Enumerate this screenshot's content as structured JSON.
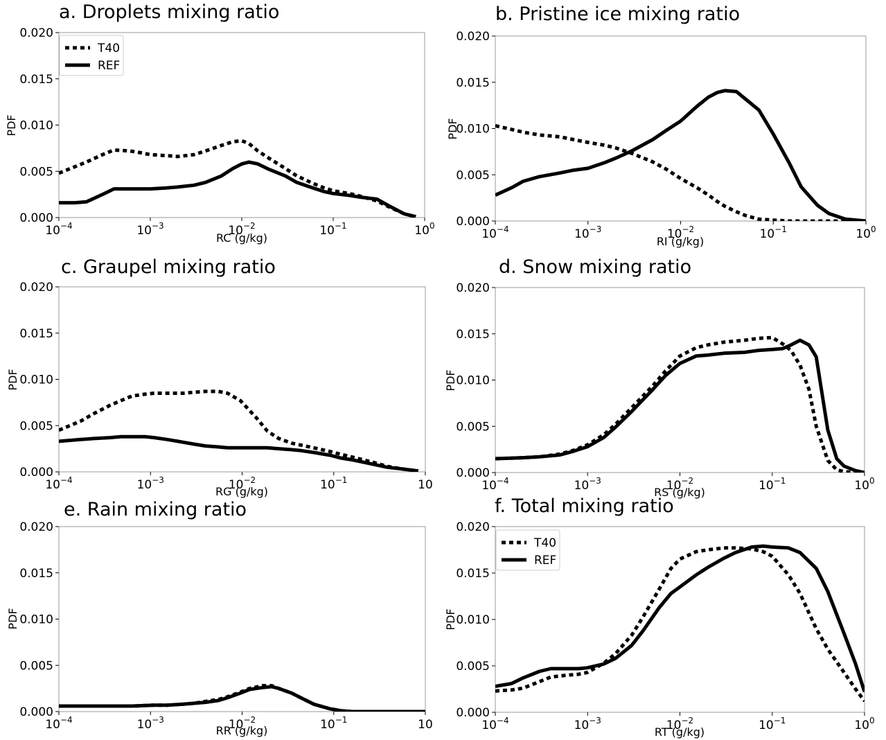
{
  "chart_data": [
    {
      "type": "line",
      "title": "a. Droplets mixing ratio",
      "xlabel": "RC (g/kg)",
      "ylabel": "PDF",
      "x_scale": "log",
      "xlim": [
        0.0001,
        1
      ],
      "ylim": [
        0,
        0.02
      ],
      "xticks": [
        "10^-4",
        "10^-3",
        "10^-2",
        "10^-1",
        "10^0"
      ],
      "yticks": [
        "0.000",
        "0.005",
        "0.010",
        "0.015",
        "0.020"
      ],
      "legend": {
        "placement": "top-left",
        "entries": [
          "T40",
          "REF"
        ]
      },
      "x": [
        0.0001,
        0.00015,
        0.0002,
        0.0003,
        0.0004,
        0.0006,
        0.0008,
        0.001,
        0.0015,
        0.002,
        0.003,
        0.004,
        0.006,
        0.008,
        0.01,
        0.012,
        0.015,
        0.02,
        0.03,
        0.04,
        0.06,
        0.08,
        0.1,
        0.15,
        0.2,
        0.3,
        0.4,
        0.6,
        0.8
      ],
      "series": [
        {
          "name": "T40",
          "style": "dotted",
          "values": [
            0.0048,
            0.0055,
            0.006,
            0.0068,
            0.0073,
            0.0072,
            0.007,
            0.0068,
            0.0067,
            0.0066,
            0.0068,
            0.0072,
            0.0078,
            0.0082,
            0.0083,
            0.008,
            0.0072,
            0.0064,
            0.0053,
            0.0045,
            0.0037,
            0.0032,
            0.0029,
            0.0026,
            0.0023,
            0.0018,
            0.0012,
            0.0004,
            0.0001
          ]
        },
        {
          "name": "REF",
          "style": "solid",
          "values": [
            0.0016,
            0.0016,
            0.0017,
            0.0025,
            0.0031,
            0.0031,
            0.0031,
            0.0031,
            0.0032,
            0.0033,
            0.0035,
            0.0038,
            0.0045,
            0.0053,
            0.0058,
            0.006,
            0.0058,
            0.0052,
            0.0045,
            0.0038,
            0.0032,
            0.0028,
            0.0026,
            0.0024,
            0.0022,
            0.002,
            0.0013,
            0.0004,
            0.0001
          ]
        }
      ]
    },
    {
      "type": "line",
      "title": "b. Pristine ice mixing ratio",
      "xlabel": "RI (g/kg)",
      "ylabel": "PDF",
      "x_scale": "log",
      "xlim": [
        0.0001,
        1
      ],
      "ylim": [
        0,
        0.02
      ],
      "xticks": [
        "10^-4",
        "10^-3",
        "10^-2",
        "10^-1",
        "10^0"
      ],
      "yticks": [
        "0.000",
        "0.005",
        "0.010",
        "0.015",
        "0.020"
      ],
      "x": [
        0.0001,
        0.00015,
        0.0002,
        0.0003,
        0.0005,
        0.0007,
        0.001,
        0.0015,
        0.002,
        0.003,
        0.005,
        0.007,
        0.01,
        0.015,
        0.02,
        0.025,
        0.03,
        0.04,
        0.05,
        0.07,
        0.1,
        0.15,
        0.2,
        0.3,
        0.4,
        0.6,
        0.8,
        1.0
      ],
      "series": [
        {
          "name": "T40",
          "style": "dotted",
          "values": [
            0.0103,
            0.0099,
            0.0096,
            0.0093,
            0.0091,
            0.0088,
            0.0085,
            0.0082,
            0.0079,
            0.0073,
            0.0064,
            0.0056,
            0.0046,
            0.0036,
            0.0028,
            0.0021,
            0.0016,
            0.001,
            0.0006,
            0.0002,
            0.0001,
            0.0,
            0.0,
            0.0,
            0.0,
            0.0,
            0.0,
            0.0
          ]
        },
        {
          "name": "REF",
          "style": "solid",
          "values": [
            0.0028,
            0.0036,
            0.0043,
            0.0048,
            0.0052,
            0.0055,
            0.0057,
            0.0063,
            0.0068,
            0.0076,
            0.0088,
            0.0098,
            0.0108,
            0.0124,
            0.0134,
            0.0139,
            0.0141,
            0.014,
            0.0132,
            0.012,
            0.0094,
            0.0062,
            0.0037,
            0.0017,
            0.0008,
            0.0002,
            0.0001,
            0.0
          ]
        }
      ]
    },
    {
      "type": "line",
      "title": "c. Graupel mixing ratio",
      "xlabel": "RG (g/kg)",
      "ylabel": "PDF",
      "x_scale": "log",
      "xlim": [
        0.0001,
        10
      ],
      "ylim": [
        0,
        0.02
      ],
      "xticks": [
        "10^-4",
        "10^-3",
        "10^-2",
        "10^-1",
        "10"
      ],
      "yticks": [
        "0.000",
        "0.005",
        "0.010",
        "0.015",
        "0.020"
      ],
      "x": [
        0.0001,
        0.0002,
        0.0003,
        0.0005,
        0.0007,
        0.001,
        0.0015,
        0.002,
        0.003,
        0.005,
        0.007,
        0.01,
        0.015,
        0.02,
        0.03,
        0.05,
        0.07,
        0.1,
        0.15,
        0.2,
        0.3,
        0.5,
        0.7,
        1.0,
        2.0,
        3.0,
        5.0,
        8.0
      ],
      "series": [
        {
          "name": "T40",
          "style": "dotted",
          "values": [
            0.0045,
            0.0055,
            0.0063,
            0.0072,
            0.0077,
            0.0082,
            0.0084,
            0.0085,
            0.0085,
            0.0085,
            0.0086,
            0.0087,
            0.0087,
            0.0085,
            0.0077,
            0.0058,
            0.0044,
            0.0036,
            0.0031,
            0.0029,
            0.0026,
            0.0022,
            0.0019,
            0.0016,
            0.001,
            0.0006,
            0.0003,
            0.0001
          ]
        },
        {
          "name": "REF",
          "style": "solid",
          "values": [
            0.0033,
            0.0035,
            0.0036,
            0.0037,
            0.0038,
            0.0038,
            0.0038,
            0.0037,
            0.0035,
            0.0032,
            0.003,
            0.0028,
            0.0027,
            0.0026,
            0.0026,
            0.0026,
            0.0026,
            0.0025,
            0.0024,
            0.0023,
            0.0021,
            0.0018,
            0.0015,
            0.0013,
            0.0008,
            0.0005,
            0.0003,
            0.0001
          ]
        }
      ]
    },
    {
      "type": "line",
      "title": "d. Snow mixing ratio",
      "xlabel": "RS (g/kg)",
      "ylabel": "PDF",
      "x_scale": "log",
      "xlim": [
        0.0001,
        1
      ],
      "ylim": [
        0,
        0.02
      ],
      "xticks": [
        "10^-4",
        "10^-3",
        "10^-2",
        "10^-1",
        "10^0"
      ],
      "yticks": [
        "0.000",
        "0.005",
        "0.010",
        "0.015",
        "0.020"
      ],
      "x": [
        0.0001,
        0.0002,
        0.0003,
        0.0005,
        0.0007,
        0.001,
        0.0015,
        0.002,
        0.003,
        0.005,
        0.007,
        0.01,
        0.015,
        0.02,
        0.03,
        0.05,
        0.07,
        0.1,
        0.13,
        0.16,
        0.2,
        0.25,
        0.3,
        0.4,
        0.5,
        0.6,
        0.8,
        1.0
      ],
      "series": [
        {
          "name": "T40",
          "style": "dotted",
          "values": [
            0.0015,
            0.0016,
            0.0017,
            0.002,
            0.0024,
            0.003,
            0.0041,
            0.0052,
            0.007,
            0.0093,
            0.011,
            0.0126,
            0.0135,
            0.0138,
            0.0141,
            0.0143,
            0.0145,
            0.0146,
            0.0139,
            0.0132,
            0.0116,
            0.009,
            0.005,
            0.0013,
            0.0003,
            0.0001,
            0.0,
            0.0
          ]
        },
        {
          "name": "REF",
          "style": "solid",
          "values": [
            0.0015,
            0.0016,
            0.0017,
            0.0019,
            0.0023,
            0.0028,
            0.0038,
            0.0049,
            0.0066,
            0.0089,
            0.0105,
            0.0118,
            0.0126,
            0.0127,
            0.0129,
            0.013,
            0.0132,
            0.0133,
            0.0134,
            0.0138,
            0.0143,
            0.0138,
            0.0125,
            0.0046,
            0.0015,
            0.0007,
            0.0002,
            0.0
          ]
        }
      ]
    },
    {
      "type": "line",
      "title": "e. Rain mixing ratio",
      "xlabel": "RR (g/kg)",
      "ylabel": "PDF",
      "x_scale": "log",
      "xlim": [
        0.0001,
        10
      ],
      "ylim": [
        0,
        0.02
      ],
      "xticks": [
        "10^-4",
        "10^-3",
        "10^-2",
        "10^-1",
        "10"
      ],
      "yticks": [
        "0.000",
        "0.005",
        "0.010",
        "0.015",
        "0.020"
      ],
      "x": [
        0.0001,
        0.0002,
        0.0005,
        0.001,
        0.002,
        0.003,
        0.005,
        0.007,
        0.01,
        0.015,
        0.02,
        0.03,
        0.04,
        0.06,
        0.08,
        0.1,
        0.15,
        0.2,
        0.3,
        0.5,
        0.7,
        1.0,
        2.0,
        5.0,
        10.0
      ],
      "series": [
        {
          "name": "T40",
          "style": "dotted",
          "values": [
            0.0006,
            0.0006,
            0.0006,
            0.0006,
            0.0007,
            0.0007,
            0.0008,
            0.0009,
            0.0011,
            0.0013,
            0.0016,
            0.0021,
            0.0025,
            0.0028,
            0.0028,
            0.0025,
            0.002,
            0.0015,
            0.0008,
            0.0003,
            0.0001,
            0.0,
            0.0,
            0.0,
            0.0
          ]
        },
        {
          "name": "REF",
          "style": "solid",
          "values": [
            0.0006,
            0.0006,
            0.0006,
            0.0006,
            0.0007,
            0.0007,
            0.0008,
            0.0009,
            0.001,
            0.0012,
            0.0015,
            0.002,
            0.0024,
            0.0026,
            0.0027,
            0.0025,
            0.002,
            0.0015,
            0.0008,
            0.0003,
            0.0001,
            0.0,
            0.0,
            0.0,
            0.0
          ]
        }
      ]
    },
    {
      "type": "line",
      "title": "f. Total mixing ratio",
      "xlabel": "RT (g/kg)",
      "ylabel": "PDF",
      "x_scale": "log",
      "xlim": [
        0.0001,
        1
      ],
      "ylim": [
        0,
        0.02
      ],
      "xticks": [
        "10^-4",
        "10^-3",
        "10^-2",
        "10^-1",
        "10^0"
      ],
      "yticks": [
        "0.000",
        "0.005",
        "0.010",
        "0.015",
        "0.020"
      ],
      "legend": {
        "placement": "top-left",
        "entries": [
          "T40",
          "REF"
        ]
      },
      "x": [
        0.0001,
        0.00015,
        0.0002,
        0.0003,
        0.0004,
        0.0006,
        0.0008,
        0.001,
        0.0015,
        0.002,
        0.003,
        0.004,
        0.006,
        0.008,
        0.01,
        0.015,
        0.02,
        0.03,
        0.04,
        0.06,
        0.08,
        0.1,
        0.15,
        0.2,
        0.3,
        0.4,
        0.6,
        0.8,
        1.0
      ],
      "series": [
        {
          "name": "T40",
          "style": "dotted",
          "values": [
            0.0023,
            0.0024,
            0.0026,
            0.0033,
            0.0038,
            0.004,
            0.0041,
            0.0043,
            0.0053,
            0.0063,
            0.0083,
            0.0103,
            0.0133,
            0.0155,
            0.0165,
            0.0173,
            0.0175,
            0.0177,
            0.0177,
            0.0176,
            0.0173,
            0.0168,
            0.0148,
            0.0128,
            0.009,
            0.0068,
            0.0043,
            0.0025,
            0.0012
          ]
        },
        {
          "name": "REF",
          "style": "solid",
          "values": [
            0.0028,
            0.0031,
            0.0037,
            0.0044,
            0.0047,
            0.0047,
            0.0047,
            0.0048,
            0.0052,
            0.0058,
            0.0072,
            0.0088,
            0.0113,
            0.0128,
            0.0135,
            0.0148,
            0.0156,
            0.0166,
            0.0172,
            0.0178,
            0.0179,
            0.0178,
            0.0177,
            0.0172,
            0.0155,
            0.013,
            0.0085,
            0.0052,
            0.0022
          ]
        }
      ]
    }
  ]
}
